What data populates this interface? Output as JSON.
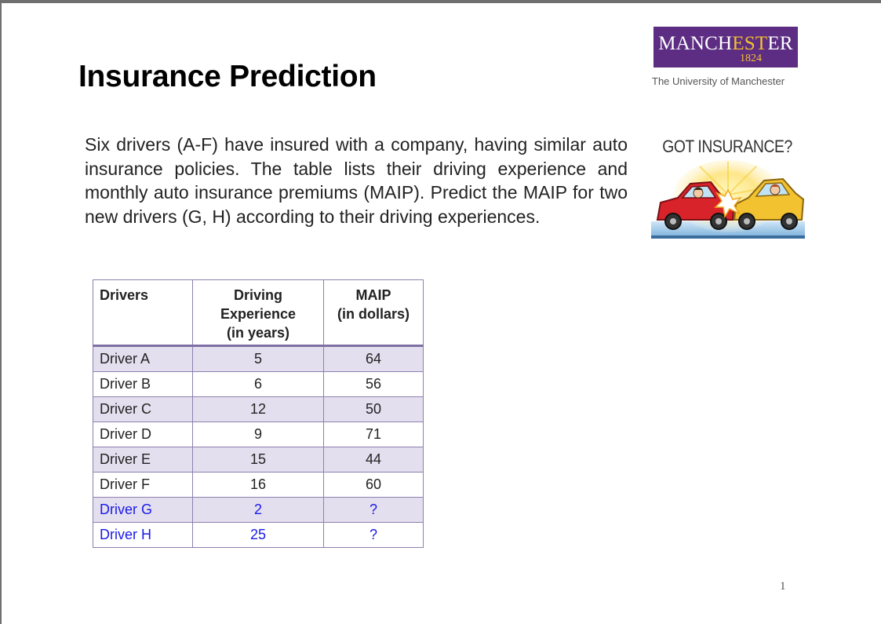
{
  "title": "Insurance Prediction",
  "logo": {
    "name_part1": "MANCH",
    "name_accent": "EST",
    "name_part2": "ER",
    "year": "1824",
    "subtitle": "The University of Manchester",
    "brand_color": "#5c2d82",
    "accent_color": "#f2c12e"
  },
  "intro": "Six drivers (A-F) have insured with a company, having similar auto insurance policies. The table lists their driving experience and monthly auto insurance premiums (MAIP). Predict the MAIP for two new drivers (G, H) according to their driving experiences.",
  "illustration": {
    "caption": "GOT INSURANCE?",
    "icon": "car-crash-illustration"
  },
  "table": {
    "headers": {
      "drivers": "Drivers",
      "experience_line1": "Driving",
      "experience_line2": "Experience",
      "experience_line3": "(in years)",
      "maip_line1": "MAIP",
      "maip_line2": "(in dollars)"
    },
    "rows": [
      {
        "driver": "Driver A",
        "experience": "5",
        "maip": "64"
      },
      {
        "driver": "Driver B",
        "experience": "6",
        "maip": "56"
      },
      {
        "driver": "Driver C",
        "experience": "12",
        "maip": "50"
      },
      {
        "driver": "Driver D",
        "experience": "9",
        "maip": "71"
      },
      {
        "driver": "Driver E",
        "experience": "15",
        "maip": "44"
      },
      {
        "driver": "Driver F",
        "experience": "16",
        "maip": "60"
      },
      {
        "driver": "Driver G",
        "experience": "2",
        "maip": "?"
      },
      {
        "driver": "Driver H",
        "experience": "25",
        "maip": "?"
      }
    ],
    "shade_color": "#e4dfee",
    "border_color": "#8e7fb0",
    "highlight_text_color": "#1a1ae8"
  },
  "page_number": "1"
}
